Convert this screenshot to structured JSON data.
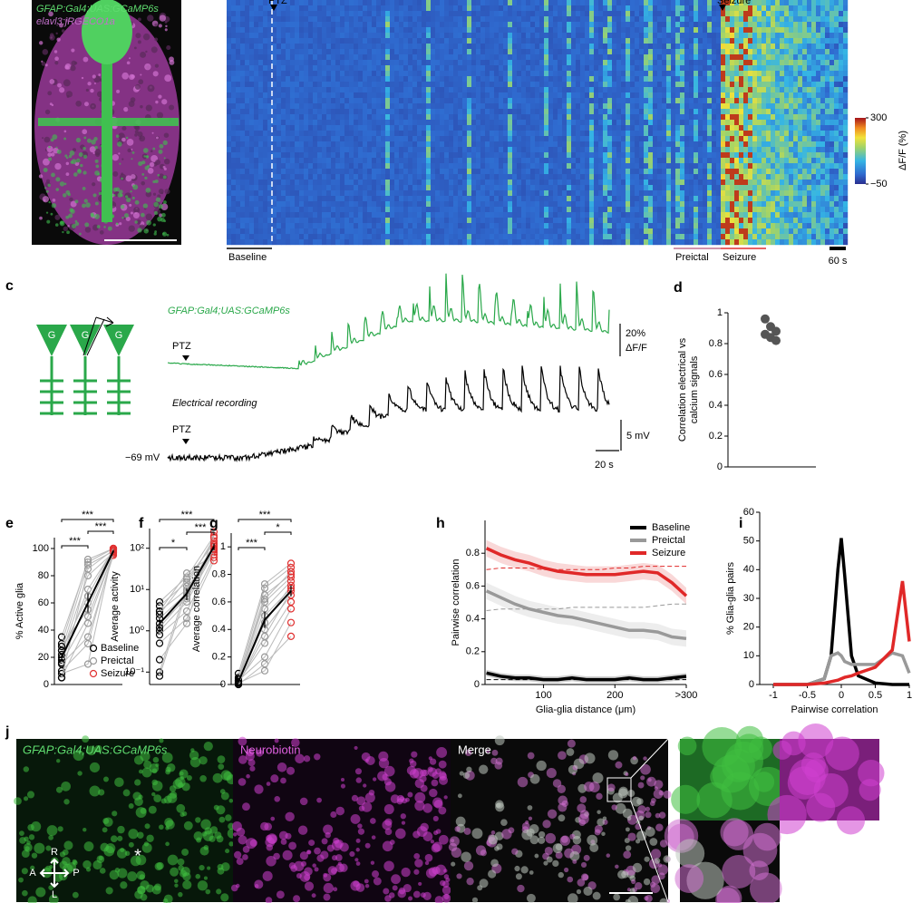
{
  "figure": {
    "a": {
      "labels": [
        "GFAP:Gal4;UAS:GCaMP6s",
        "elavl3:jRGECO1a"
      ]
    },
    "b": {
      "markers": [
        "PTZ",
        "Seizure"
      ],
      "periods": [
        "Baseline",
        "Preictal",
        "Seizure"
      ],
      "scale": "60 s",
      "colorbar": {
        "label": "ΔF/F (%)",
        "ticks": [
          300,
          {
            "value": -50,
            "label": "−50"
          }
        ]
      }
    },
    "c": {
      "label": "c",
      "cells": [
        "G",
        "G",
        "G"
      ],
      "calcium_label": "GFAP:Gal4;UAS:GCaMP6s",
      "ptz": [
        "PTZ",
        "PTZ"
      ],
      "calcium_scale": [
        "20%",
        "ΔF/F"
      ],
      "electrical_label": "Electrical recording",
      "baseline_potential": "−69 mV",
      "voltage_scale": "5 mV",
      "time_scale": "20 s"
    },
    "j": {
      "label": "j",
      "titles": [
        "GFAP:Gal4;UAS:GCaMP6s",
        "Neurobiotin",
        "Merge"
      ],
      "compass": [
        "R",
        "A",
        "P",
        "L"
      ],
      "asterisk": "*"
    }
  },
  "chart_data": [
    {
      "type": "dot",
      "label": "d",
      "ylabel": [
        "Correlation electrical vs",
        "calcium signals"
      ],
      "values": [
        0.96,
        0.91,
        0.88,
        0.86,
        0.84,
        0.82
      ],
      "color": "#555555",
      "ylim": [
        0,
        1
      ],
      "yticks": [
        0,
        0.2,
        0.4,
        0.6,
        0.8,
        1
      ]
    },
    {
      "type": "paired",
      "label": "e",
      "ylabel": "% Active glia",
      "categories": [
        "Baseline",
        "Preictal",
        "Seizure"
      ],
      "colors": [
        "#000000",
        "#999999",
        "#e03030"
      ],
      "subjects": [
        [
          35,
          90,
          100
        ],
        [
          30,
          92,
          100
        ],
        [
          25,
          88,
          98
        ],
        [
          22,
          80,
          97
        ],
        [
          20,
          70,
          99
        ],
        [
          18,
          60,
          100
        ],
        [
          16,
          50,
          96
        ],
        [
          15,
          35,
          95
        ],
        [
          10,
          30,
          98
        ],
        [
          8,
          15,
          100
        ],
        [
          5,
          45,
          97
        ],
        [
          5,
          85,
          99
        ],
        [
          25,
          65,
          100
        ],
        [
          28,
          55,
          98
        ]
      ],
      "mean": [
        20,
        60,
        98
      ],
      "sem": [
        3,
        7,
        1
      ],
      "ylim": [
        0,
        108
      ],
      "yticks": [
        0,
        20,
        40,
        60,
        80,
        100
      ],
      "legend": "lower right",
      "significance": [
        {
          "label": "***",
          "pair": [
            "Baseline",
            "Preictal"
          ]
        },
        {
          "label": "***",
          "pair": [
            "Preictal",
            "Seizure"
          ]
        },
        {
          "label": "***",
          "pair": [
            "Baseline",
            "Seizure"
          ]
        }
      ]
    },
    {
      "type": "paired",
      "label": "f",
      "ylabel": "Average activity",
      "categories": [
        "Baseline",
        "Preictal",
        "Seizure"
      ],
      "colors": [
        "#000000",
        "#999999",
        "#e03030"
      ],
      "log": true,
      "subjects": [
        [
          5,
          20,
          200
        ],
        [
          4,
          15,
          150
        ],
        [
          3,
          10,
          120
        ],
        [
          2,
          8,
          100
        ],
        [
          1.5,
          6,
          90
        ],
        [
          1,
          5,
          80
        ],
        [
          0.8,
          3,
          60
        ],
        [
          0.5,
          2,
          50
        ],
        [
          0.2,
          1.5,
          250
        ],
        [
          0.1,
          12,
          180
        ],
        [
          0.08,
          9,
          110
        ],
        [
          3,
          25,
          70
        ],
        [
          2.5,
          18,
          130
        ],
        [
          1.2,
          7,
          95
        ]
      ],
      "mean": [
        1.5,
        8,
        110
      ],
      "sem": [
        0.5,
        2.5,
        20
      ],
      "ylim": [
        0.05,
        300
      ],
      "yticks": [
        {
          "value": 0.1,
          "label": "10⁻¹"
        },
        {
          "value": 1,
          "label": "10⁰"
        },
        {
          "value": 10,
          "label": "10¹"
        },
        {
          "value": 100,
          "label": "10²"
        }
      ],
      "significance": [
        {
          "label": "*",
          "pair": [
            "Baseline",
            "Preictal"
          ]
        },
        {
          "label": "***",
          "pair": [
            "Preictal",
            "Seizure"
          ]
        },
        {
          "label": "***",
          "pair": [
            "Baseline",
            "Seizure"
          ]
        }
      ]
    },
    {
      "type": "paired",
      "label": "g",
      "ylabel": "Average correlation",
      "categories": [
        "Baseline",
        "Preictal",
        "Seizure"
      ],
      "colors": [
        "#000000",
        "#999999",
        "#e03030"
      ],
      "subjects": [
        [
          0.08,
          0.73,
          0.88
        ],
        [
          0.05,
          0.7,
          0.85
        ],
        [
          0.03,
          0.65,
          0.8
        ],
        [
          0.02,
          0.6,
          0.78
        ],
        [
          0.01,
          0.55,
          0.75
        ],
        [
          0.01,
          0.5,
          0.7
        ],
        [
          0,
          0.4,
          0.65
        ],
        [
          0.02,
          0.3,
          0.6
        ],
        [
          0.03,
          0.2,
          0.55
        ],
        [
          0,
          0.15,
          0.35
        ],
        [
          0.01,
          0.1,
          0.45
        ],
        [
          0.04,
          0.62,
          0.82
        ],
        [
          0.02,
          0.45,
          0.72
        ],
        [
          0.01,
          0.35,
          0.68
        ]
      ],
      "mean": [
        0.02,
        0.47,
        0.68
      ],
      "sem": [
        0.01,
        0.06,
        0.04
      ],
      "ylim": [
        0,
        1.1
      ],
      "yticks": [
        0,
        0.2,
        0.4,
        0.6,
        0.8,
        1
      ],
      "significance": [
        {
          "label": "***",
          "pair": [
            "Baseline",
            "Preictal"
          ]
        },
        {
          "label": "*",
          "pair": [
            "Preictal",
            "Seizure"
          ]
        },
        {
          "label": "***",
          "pair": [
            "Baseline",
            "Seizure"
          ]
        }
      ]
    },
    {
      "type": "line",
      "label": "h",
      "xlabel": "Glia-glia distance (μm)",
      "ylabel": "Pairwise correlation",
      "x": [
        20,
        40,
        60,
        80,
        100,
        120,
        140,
        160,
        180,
        200,
        220,
        240,
        260,
        280,
        300
      ],
      "series": [
        {
          "name": "Baseline",
          "color": "#000000",
          "error": 0.02,
          "values": [
            0.07,
            0.05,
            0.04,
            0.04,
            0.03,
            0.03,
            0.04,
            0.03,
            0.03,
            0.03,
            0.04,
            0.03,
            0.03,
            0.04,
            0.05
          ],
          "dashed": [
            0.03,
            0.03,
            0.03,
            0.03,
            0.03,
            0.03,
            0.03,
            0.03,
            0.03,
            0.03,
            0.03,
            0.03,
            0.03,
            0.03,
            0.03
          ]
        },
        {
          "name": "Preictal",
          "color": "#999999",
          "error": 0.05,
          "values": [
            0.57,
            0.53,
            0.49,
            0.46,
            0.44,
            0.42,
            0.41,
            0.39,
            0.37,
            0.35,
            0.33,
            0.33,
            0.32,
            0.29,
            0.28
          ],
          "dashed": [
            0.45,
            0.46,
            0.46,
            0.46,
            0.46,
            0.46,
            0.47,
            0.47,
            0.47,
            0.47,
            0.47,
            0.47,
            0.48,
            0.49,
            0.49
          ]
        },
        {
          "name": "Seizure",
          "color": "#e02828",
          "error": 0.05,
          "values": [
            0.83,
            0.79,
            0.76,
            0.74,
            0.71,
            0.69,
            0.68,
            0.67,
            0.67,
            0.67,
            0.68,
            0.69,
            0.68,
            0.62,
            0.54
          ],
          "dashed": [
            0.7,
            0.71,
            0.71,
            0.71,
            0.7,
            0.7,
            0.7,
            0.7,
            0.7,
            0.71,
            0.71,
            0.72,
            0.72,
            0.72,
            0.72
          ]
        }
      ],
      "xlim": [
        18,
        300
      ],
      "ylim": [
        0,
        1
      ],
      "xticks": [
        100,
        200,
        {
          "value": 300,
          "label": ">300"
        }
      ],
      "yticks": [
        0,
        0.2,
        0.4,
        0.6,
        0.8
      ],
      "legend": "upper right"
    },
    {
      "type": "line",
      "label": "i",
      "xlabel": "Pairwise correlation",
      "ylabel": "% Glia-glia pairs",
      "x": [
        -1,
        -0.75,
        -0.5,
        -0.25,
        -0.15,
        -0.05,
        0,
        0.05,
        0.15,
        0.25,
        0.5,
        0.75,
        0.9,
        1
      ],
      "series": [
        {
          "name": "Baseline",
          "color": "#000000",
          "values": [
            0,
            0,
            0,
            2,
            10,
            40,
            51,
            38,
            10,
            3,
            0.5,
            0,
            0,
            0
          ]
        },
        {
          "name": "Preictal",
          "color": "#999999",
          "values": [
            0,
            0,
            0,
            2,
            10,
            11,
            10,
            8,
            7,
            7,
            7,
            11,
            10,
            4
          ]
        },
        {
          "name": "Seizure",
          "color": "#e02828",
          "values": [
            0,
            0,
            0,
            0.5,
            1,
            1.5,
            2,
            2.5,
            3,
            4,
            6,
            12,
            36,
            15
          ]
        }
      ],
      "xlim": [
        -1.2,
        1
      ],
      "ylim": [
        0,
        60
      ],
      "xticks": [
        -1,
        -0.5,
        0,
        0.5,
        1
      ],
      "yticks": [
        0,
        10,
        20,
        30,
        40,
        50,
        60
      ]
    }
  ]
}
